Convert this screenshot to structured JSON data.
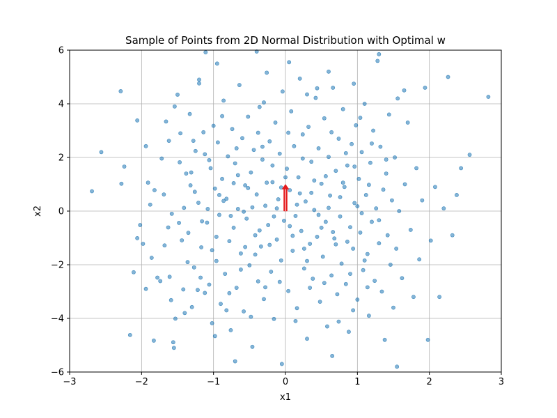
{
  "chart_data": {
    "type": "scatter",
    "title": "Sample of Points from 2D Normal Distribution with Optimal w",
    "xlabel": "x1",
    "ylabel": "x2",
    "xlim": [
      -3,
      3
    ],
    "ylim": [
      -6,
      6
    ],
    "xticks": [
      -3,
      -2,
      -1,
      0,
      1,
      2,
      3
    ],
    "yticks": [
      -6,
      -4,
      -2,
      0,
      2,
      4,
      6
    ],
    "xtick_labels": [
      "−3",
      "−2",
      "−1",
      "0",
      "1",
      "2",
      "3"
    ],
    "ytick_labels": [
      "−6",
      "−4",
      "−2",
      "0",
      "2",
      "4",
      "6"
    ],
    "grid": true,
    "legend": "none",
    "series": [
      {
        "kind": "scatter",
        "color": "#1f77b4",
        "opacity": 0.55,
        "points": [
          [
            -2.69,
            0.74
          ],
          [
            -2.56,
            2.2
          ],
          [
            -2.29,
            4.47
          ],
          [
            -2.28,
            1.02
          ],
          [
            -2.24,
            1.66
          ],
          [
            -2.16,
            -4.62
          ],
          [
            -2.11,
            -2.28
          ],
          [
            -2.06,
            3.38
          ],
          [
            -2.06,
            -1.01
          ],
          [
            -2.02,
            -0.52
          ],
          [
            -1.98,
            -1.22
          ],
          [
            -1.94,
            2.42
          ],
          [
            -1.91,
            1.06
          ],
          [
            -1.86,
            -1.74
          ],
          [
            -1.83,
            -4.83
          ],
          [
            -1.78,
            -2.48
          ],
          [
            -1.74,
            -2.61
          ],
          [
            -1.69,
            0.62
          ],
          [
            -1.66,
            3.34
          ],
          [
            -1.63,
            -0.61
          ],
          [
            -1.61,
            -2.45
          ],
          [
            -1.59,
            -3.32
          ],
          [
            -1.56,
            -4.89
          ],
          [
            -1.53,
            -4.01
          ],
          [
            -1.5,
            4.34
          ],
          [
            -1.47,
            1.82
          ],
          [
            -1.44,
            -1.09
          ],
          [
            -1.42,
            -2.92
          ],
          [
            -1.41,
            0.12
          ],
          [
            -1.38,
            1.4
          ],
          [
            -1.35,
            -0.81
          ],
          [
            -1.33,
            3.62
          ],
          [
            -1.31,
            1.44
          ],
          [
            -1.3,
            -3.58
          ],
          [
            -1.27,
            -2.1
          ],
          [
            -1.25,
            2.24
          ],
          [
            -1.21,
            0.31
          ],
          [
            -1.2,
            4.76
          ],
          [
            -1.17,
            -1.35
          ],
          [
            -1.14,
            2.94
          ],
          [
            -1.12,
            -3.05
          ],
          [
            -1.11,
            5.92
          ],
          [
            -1.09,
            -0.43
          ],
          [
            -1.06,
            -2.74
          ],
          [
            -1.04,
            1.6
          ],
          [
            -1.02,
            -4.18
          ],
          [
            -1.0,
            3.18
          ],
          [
            -0.98,
            0.84
          ],
          [
            -0.96,
            -1.86
          ],
          [
            -0.94,
            2.56
          ],
          [
            -0.92,
            -0.14
          ],
          [
            -0.9,
            -3.46
          ],
          [
            -0.88,
            1.2
          ],
          [
            -0.86,
            4.12
          ],
          [
            -0.84,
            -2.34
          ],
          [
            -0.82,
            0.46
          ],
          [
            -0.8,
            2.04
          ],
          [
            -0.78,
            -1.12
          ],
          [
            -0.76,
            -4.44
          ],
          [
            -0.74,
            3.06
          ],
          [
            -0.72,
            -0.62
          ],
          [
            -0.7,
            1.78
          ],
          [
            -0.68,
            -2.86
          ],
          [
            -0.66,
            0.08
          ],
          [
            -0.64,
            4.7
          ],
          [
            -0.62,
            -1.58
          ],
          [
            -0.6,
            2.72
          ],
          [
            -0.58,
            -3.74
          ],
          [
            -0.56,
            0.96
          ],
          [
            -0.54,
            -0.28
          ],
          [
            -0.52,
            3.52
          ],
          [
            -0.5,
            -2.02
          ],
          [
            -0.48,
            1.44
          ],
          [
            -0.46,
            -5.06
          ],
          [
            -0.44,
            2.28
          ],
          [
            -0.42,
            -0.9
          ],
          [
            -0.4,
            0.62
          ],
          [
            -0.38,
            -2.62
          ],
          [
            -0.36,
            3.88
          ],
          [
            -0.34,
            -1.32
          ],
          [
            -0.32,
            1.92
          ],
          [
            -0.3,
            -3.28
          ],
          [
            -0.28,
            0.2
          ],
          [
            -0.26,
            5.16
          ],
          [
            -0.24,
            -0.52
          ],
          [
            -0.22,
            2.6
          ],
          [
            -0.2,
            -2.26
          ],
          [
            -0.18,
            1.08
          ],
          [
            -0.16,
            -4.02
          ],
          [
            -0.14,
            3.3
          ],
          [
            -0.12,
            -1.06
          ],
          [
            -0.1,
            0.44
          ],
          [
            -0.08,
            2.14
          ],
          [
            -0.06,
            -1.84
          ],
          [
            -0.04,
            4.46
          ],
          [
            -0.02,
            -0.36
          ],
          [
            0.02,
            1.58
          ],
          [
            0.04,
            -2.98
          ],
          [
            0.06,
            0.78
          ],
          [
            0.08,
            3.72
          ],
          [
            0.1,
            -1.48
          ],
          [
            0.12,
            2.42
          ],
          [
            0.14,
            -0.18
          ],
          [
            0.16,
            -3.62
          ],
          [
            0.18,
            1.26
          ],
          [
            0.2,
            4.94
          ],
          [
            0.22,
            -0.74
          ],
          [
            0.24,
            2.86
          ],
          [
            0.26,
            -2.14
          ],
          [
            0.28,
            0.36
          ],
          [
            0.3,
            -4.76
          ],
          [
            0.32,
            3.14
          ],
          [
            0.34,
            -1.22
          ],
          [
            0.36,
            1.84
          ],
          [
            0.38,
            -2.52
          ],
          [
            0.4,
            0.04
          ],
          [
            0.42,
            4.22
          ],
          [
            0.44,
            -0.96
          ],
          [
            0.46,
            2.34
          ],
          [
            0.48,
            -3.38
          ],
          [
            0.5,
            1.02
          ],
          [
            0.52,
            -1.7
          ],
          [
            0.54,
            3.46
          ],
          [
            0.56,
            -0.4
          ],
          [
            0.58,
            -4.3
          ],
          [
            0.6,
            2.02
          ],
          [
            0.62,
            0.58
          ],
          [
            0.64,
            -2.4
          ],
          [
            0.66,
            4.6
          ],
          [
            0.68,
            -1.02
          ],
          [
            0.7,
            1.5
          ],
          [
            0.72,
            -3.1
          ],
          [
            0.74,
            2.7
          ],
          [
            0.76,
            -0.2
          ],
          [
            0.78,
            -1.96
          ],
          [
            0.8,
            3.8
          ],
          [
            0.82,
            0.9
          ],
          [
            0.84,
            -2.72
          ],
          [
            0.86,
            1.7
          ],
          [
            0.88,
            -4.5
          ],
          [
            0.9,
            -0.6
          ],
          [
            0.92,
            2.5
          ],
          [
            0.94,
            -1.4
          ],
          [
            0.96,
            0.3
          ],
          [
            0.98,
            3.2
          ],
          [
            1.0,
            -3.3
          ],
          [
            1.02,
            1.2
          ],
          [
            1.04,
            -0.8
          ],
          [
            1.06,
            2.2
          ],
          [
            1.08,
            -2.2
          ],
          [
            1.1,
            4.0
          ],
          [
            1.12,
            0.6
          ],
          [
            1.14,
            -1.6
          ],
          [
            1.16,
            -3.9
          ],
          [
            1.18,
            1.8
          ],
          [
            1.2,
            -0.4
          ],
          [
            1.22,
            3.0
          ],
          [
            1.24,
            -2.6
          ],
          [
            1.26,
            0.1
          ],
          [
            1.28,
            5.6
          ],
          [
            1.3,
            -1.2
          ],
          [
            1.32,
            2.4
          ],
          [
            1.34,
            -3.0
          ],
          [
            1.36,
            0.8
          ],
          [
            1.38,
            -4.8
          ],
          [
            1.4,
            1.4
          ],
          [
            1.42,
            -0.9
          ],
          [
            1.44,
            3.6
          ],
          [
            1.46,
            -2.0
          ],
          [
            1.48,
            0.4
          ],
          [
            1.5,
            -3.6
          ],
          [
            1.52,
            2.0
          ],
          [
            1.54,
            -1.4
          ],
          [
            1.56,
            4.2
          ],
          [
            1.58,
            0.0
          ],
          [
            1.62,
            -2.5
          ],
          [
            1.66,
            1.0
          ],
          [
            1.7,
            3.3
          ],
          [
            1.74,
            -0.7
          ],
          [
            1.78,
            -3.2
          ],
          [
            1.82,
            1.6
          ],
          [
            1.86,
            -1.8
          ],
          [
            1.9,
            0.4
          ],
          [
            1.94,
            4.6
          ],
          [
            1.98,
            -4.8
          ],
          [
            2.02,
            -1.1
          ],
          [
            2.08,
            0.9
          ],
          [
            2.14,
            -3.2
          ],
          [
            2.2,
            0.1
          ],
          [
            2.26,
            5.0
          ],
          [
            2.32,
            -0.9
          ],
          [
            2.38,
            0.6
          ],
          [
            2.44,
            1.6
          ],
          [
            2.56,
            2.1
          ],
          [
            2.82,
            4.26
          ],
          [
            -1.88,
            0.24
          ],
          [
            -1.72,
            1.96
          ],
          [
            -1.58,
            -0.1
          ],
          [
            -1.46,
            2.9
          ],
          [
            -1.36,
            -1.9
          ],
          [
            -1.26,
            0.72
          ],
          [
            -1.16,
            -0.38
          ],
          [
            -1.06,
            1.9
          ],
          [
            -0.96,
            -0.96
          ],
          [
            -0.86,
            0.38
          ],
          [
            -0.76,
            -0.18
          ],
          [
            -0.66,
            1.34
          ],
          [
            -0.56,
            -1.34
          ],
          [
            -0.46,
            0.14
          ],
          [
            -0.36,
            -0.72
          ],
          [
            -0.26,
            1.06
          ],
          [
            -0.16,
            -0.2
          ],
          [
            -0.06,
            0.88
          ],
          [
            0.06,
            -0.56
          ],
          [
            0.16,
            0.24
          ],
          [
            0.26,
            -1.4
          ],
          [
            0.36,
            0.68
          ],
          [
            0.46,
            -0.14
          ],
          [
            0.56,
            1.3
          ],
          [
            0.66,
            -0.78
          ],
          [
            0.76,
            0.52
          ],
          [
            0.86,
            -1.14
          ],
          [
            0.96,
            1.66
          ],
          [
            1.06,
            -0.08
          ],
          [
            1.16,
            0.98
          ],
          [
            -1.94,
            -2.9
          ],
          [
            -1.82,
            0.78
          ],
          [
            -1.68,
            -1.28
          ],
          [
            -1.54,
            3.9
          ],
          [
            -1.4,
            -3.8
          ],
          [
            -1.28,
            2.62
          ],
          [
            -1.18,
            -2.48
          ],
          [
            -1.08,
            0.08
          ],
          [
            -0.98,
            -4.66
          ],
          [
            -0.88,
            3.54
          ],
          [
            -0.78,
            -3.06
          ],
          [
            -0.68,
            2.34
          ],
          [
            -0.58,
            -0.02
          ],
          [
            -0.48,
            -3.94
          ],
          [
            -0.38,
            2.92
          ],
          [
            -0.28,
            -2.84
          ],
          [
            -0.18,
            1.7
          ],
          [
            -0.08,
            -2.64
          ],
          [
            0.04,
            2.92
          ],
          [
            0.14,
            -4.1
          ],
          [
            0.24,
            1.96
          ],
          [
            0.34,
            -2.86
          ],
          [
            0.44,
            4.58
          ],
          [
            0.54,
            -2.68
          ],
          [
            0.64,
            2.94
          ],
          [
            0.74,
            -4.12
          ],
          [
            0.84,
            2.16
          ],
          [
            0.94,
            -3.7
          ],
          [
            1.04,
            3.48
          ],
          [
            1.14,
            -2.84
          ],
          [
            -0.95,
            5.5
          ],
          [
            -0.4,
            5.95
          ],
          [
            0.05,
            5.55
          ],
          [
            0.6,
            5.2
          ],
          [
            1.3,
            5.85
          ],
          [
            -0.7,
            -5.6
          ],
          [
            -0.05,
            -5.7
          ],
          [
            0.65,
            -5.4
          ],
          [
            1.55,
            -5.8
          ],
          [
            -1.55,
            -5.1
          ],
          [
            -1.2,
            4.9
          ],
          [
            -0.3,
            4.05
          ],
          [
            0.3,
            4.35
          ],
          [
            0.95,
            4.75
          ],
          [
            1.65,
            4.5
          ],
          [
            -1.62,
            2.62
          ],
          [
            -1.48,
            -0.44
          ],
          [
            -1.32,
            0.96
          ],
          [
            -1.22,
            -2.94
          ],
          [
            -1.12,
            2.12
          ],
          [
            -1.02,
            -1.46
          ],
          [
            -0.92,
            0.6
          ],
          [
            -0.82,
            -3.7
          ],
          [
            -0.72,
            1.04
          ],
          [
            -0.62,
            -2.18
          ],
          [
            -0.52,
            0.86
          ],
          [
            -0.42,
            -1.62
          ],
          [
            -0.32,
            2.4
          ],
          [
            -0.22,
            -1.26
          ],
          [
            -0.12,
            0.1
          ],
          [
            0.0,
            1.26
          ],
          [
            0.1,
            -0.92
          ],
          [
            0.2,
            0.66
          ],
          [
            0.3,
            -1.86
          ],
          [
            0.4,
            1.14
          ],
          [
            0.5,
            -0.62
          ],
          [
            0.6,
            0.12
          ],
          [
            0.7,
            -1.24
          ],
          [
            0.8,
            1.06
          ],
          [
            0.9,
            -2.34
          ],
          [
            1.0,
            0.18
          ],
          [
            1.1,
            -1.84
          ],
          [
            1.2,
            2.52
          ],
          [
            1.3,
            -0.34
          ],
          [
            1.4,
            1.92
          ]
        ]
      }
    ],
    "arrow": {
      "label": "Optimal w",
      "color": "#e41a1c",
      "from": [
        0,
        0
      ],
      "to": [
        0,
        1
      ]
    }
  }
}
